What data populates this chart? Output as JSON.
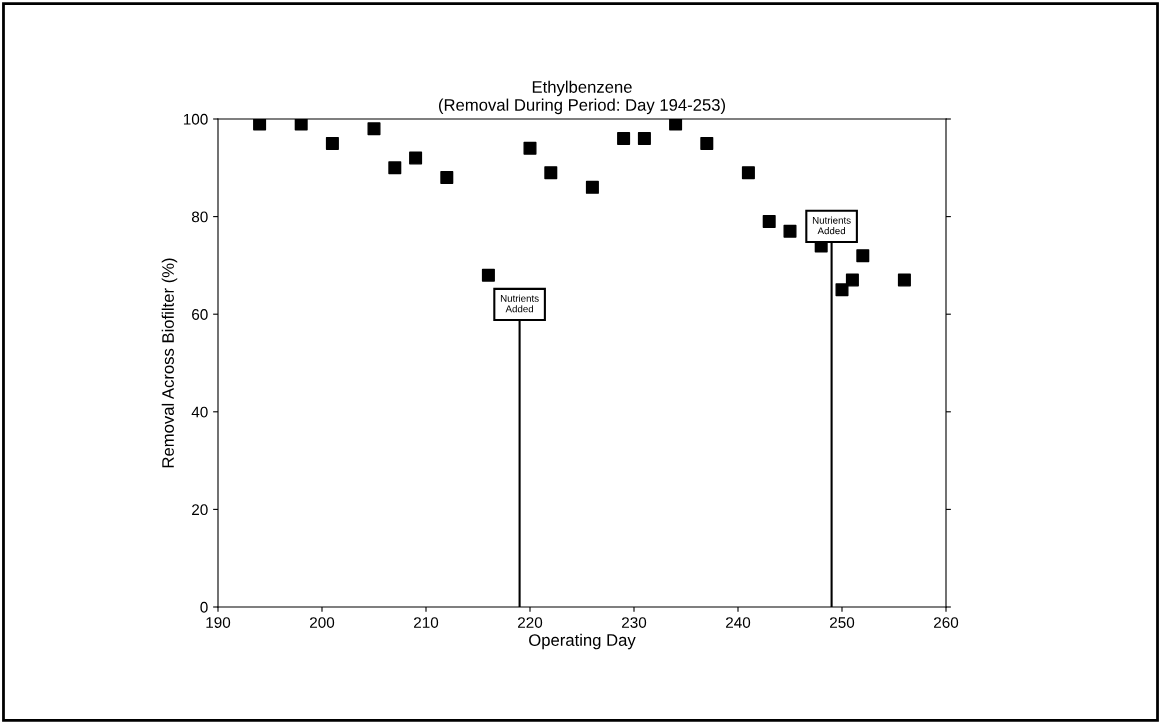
{
  "chart_data": {
    "type": "scatter",
    "title": "Ethylbenzene\n(Removal During Period: Day 194-253)",
    "xlabel": "Operating Day",
    "ylabel": "Removal Across Biofilter (%)",
    "x": [
      194,
      198,
      201,
      205,
      207,
      209,
      212,
      216,
      220,
      222,
      226,
      229,
      231,
      234,
      237,
      241,
      243,
      245,
      248,
      250,
      251,
      252,
      256
    ],
    "series": [
      {
        "color": "#000000",
        "values": [
          99,
          99,
          95,
          98,
          90,
          92,
          88,
          68,
          94,
          89,
          86,
          96,
          96,
          99,
          95,
          89,
          79,
          77,
          74,
          65,
          67,
          72,
          67
        ]
      }
    ],
    "xlim": [
      190,
      260
    ],
    "xticks": [
      190,
      200,
      210,
      220,
      230,
      240,
      250,
      260
    ],
    "ylim": [
      0,
      100
    ],
    "yticks": [
      0,
      20,
      40,
      60,
      80,
      100
    ],
    "marker": "square",
    "grid": false,
    "legend": false,
    "ref_lines": [
      {
        "axis": "x",
        "value": 219,
        "label": "Nutrients\nAdded"
      },
      {
        "axis": "x",
        "value": 249,
        "label": "Nutrients\nAdded"
      }
    ]
  }
}
